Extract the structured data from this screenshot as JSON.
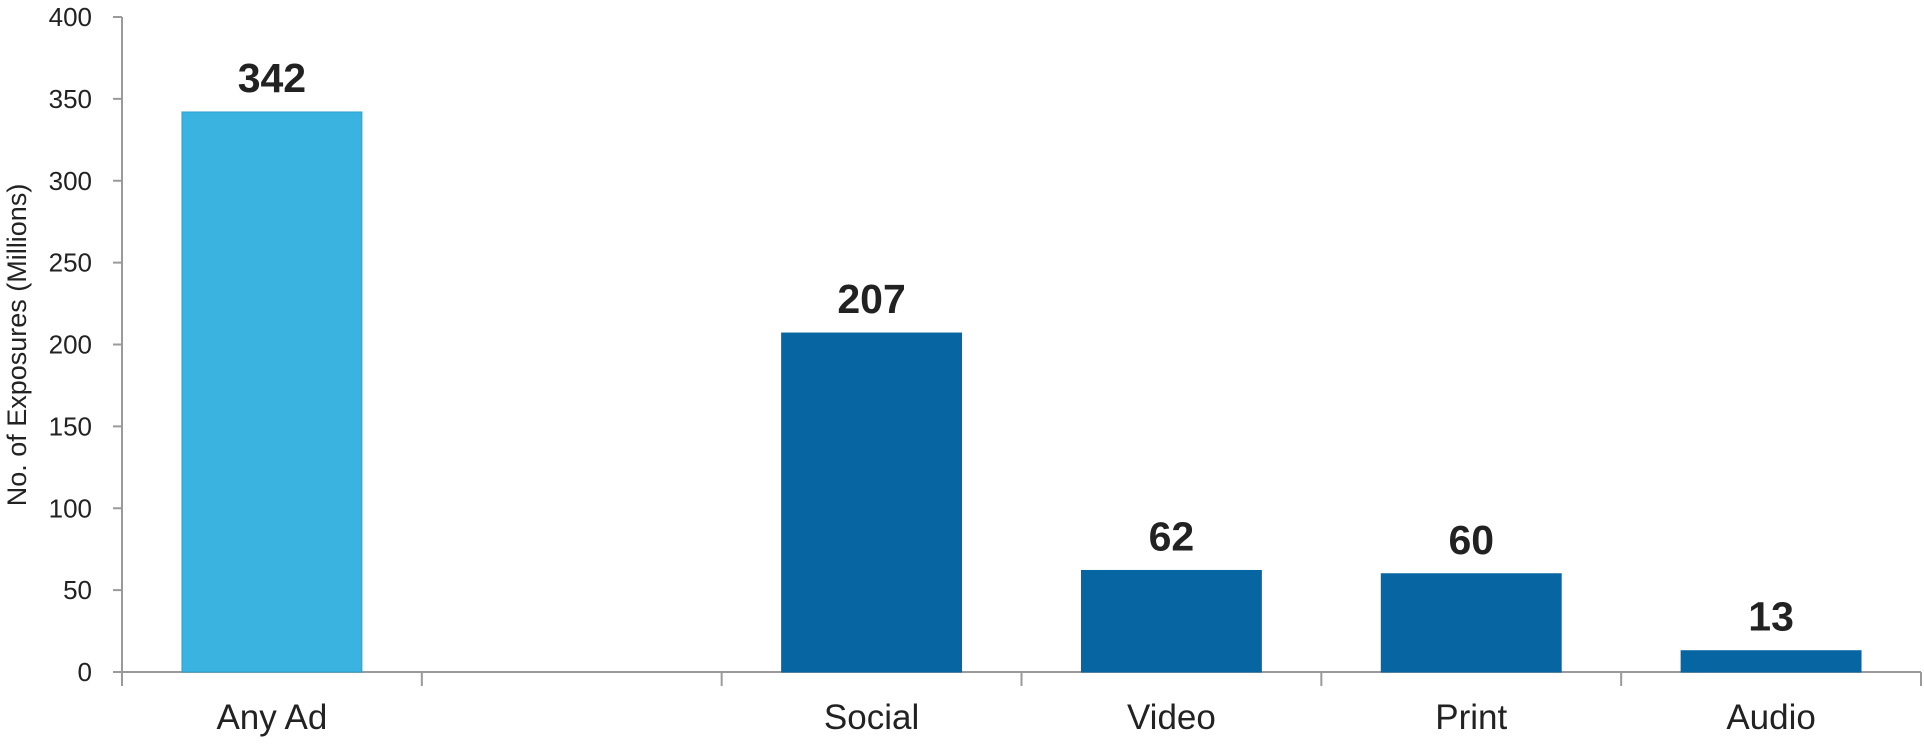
{
  "chart_data": {
    "type": "bar",
    "title": "",
    "xlabel": "",
    "ylabel": "No. of Exposures (Millions)",
    "ylim": [
      0,
      400
    ],
    "yticks": [
      0,
      50,
      100,
      150,
      200,
      250,
      300,
      350,
      400
    ],
    "grid": false,
    "legend": "none",
    "slots": [
      "Any Ad",
      "",
      "Social",
      "Video",
      "Print",
      "Audio"
    ],
    "categories": [
      "Any Ad",
      "Social",
      "Video",
      "Print",
      "Audio"
    ],
    "values": [
      342,
      207,
      62,
      60,
      13
    ],
    "data_labels": [
      "342",
      "207",
      "62",
      "60",
      "13"
    ],
    "colors": [
      "#3AB3E0",
      "#0766A2",
      "#0766A2",
      "#0766A2",
      "#0766A2"
    ],
    "axis_color": "#9A9A9A"
  }
}
